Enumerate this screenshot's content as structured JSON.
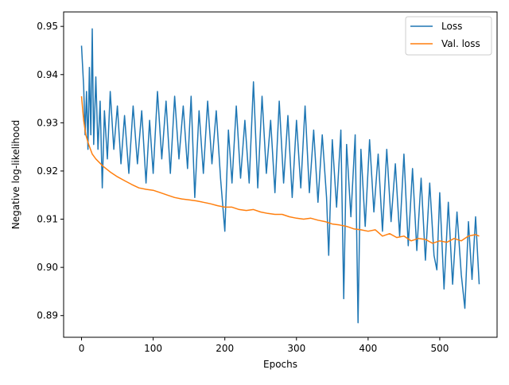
{
  "chart_data": {
    "type": "line",
    "title": "",
    "xlabel": "Epochs",
    "ylabel": "Negative log-likelihood",
    "xlim": [
      -25,
      580
    ],
    "ylim": [
      0.8855,
      0.953
    ],
    "xticks": [
      0,
      100,
      200,
      300,
      400,
      500
    ],
    "yticks": [
      0.89,
      0.9,
      0.91,
      0.92,
      0.93,
      0.94,
      0.95
    ],
    "ytick_labels": [
      "0.89",
      "0.90",
      "0.91",
      "0.92",
      "0.93",
      "0.94",
      "0.95"
    ],
    "grid": false,
    "legend": "top-right",
    "series": [
      {
        "name": "Loss",
        "color": "#1f77b4",
        "x": [
          0,
          3,
          5,
          7,
          9,
          11,
          13,
          15,
          17,
          20,
          23,
          26,
          29,
          32,
          36,
          40,
          45,
          50,
          55,
          60,
          66,
          72,
          78,
          84,
          90,
          95,
          100,
          106,
          112,
          118,
          124,
          130,
          136,
          142,
          148,
          153,
          158,
          164,
          170,
          176,
          182,
          188,
          194,
          200,
          205,
          210,
          216,
          222,
          228,
          234,
          240,
          246,
          252,
          258,
          264,
          270,
          276,
          282,
          288,
          294,
          300,
          306,
          312,
          318,
          324,
          330,
          336,
          342,
          345,
          350,
          356,
          362,
          366,
          370,
          376,
          382,
          386,
          390,
          396,
          402,
          408,
          414,
          420,
          426,
          432,
          438,
          444,
          450,
          456,
          462,
          468,
          474,
          480,
          486,
          492,
          496,
          500,
          506,
          512,
          518,
          524,
          530,
          535,
          540,
          545,
          550,
          555
        ],
        "y": [
          0.946,
          0.9375,
          0.9275,
          0.9365,
          0.9245,
          0.9415,
          0.9275,
          0.9495,
          0.9255,
          0.9395,
          0.9245,
          0.9345,
          0.9165,
          0.9325,
          0.9225,
          0.9365,
          0.9245,
          0.9335,
          0.9215,
          0.9315,
          0.9195,
          0.9335,
          0.9215,
          0.9325,
          0.9175,
          0.9305,
          0.9195,
          0.9365,
          0.9225,
          0.9345,
          0.9195,
          0.9355,
          0.9225,
          0.9335,
          0.9205,
          0.9355,
          0.9145,
          0.9325,
          0.9195,
          0.9345,
          0.9215,
          0.9325,
          0.9185,
          0.9075,
          0.9285,
          0.9175,
          0.9335,
          0.9185,
          0.9305,
          0.9175,
          0.9385,
          0.9165,
          0.9355,
          0.9195,
          0.9305,
          0.9155,
          0.9345,
          0.9175,
          0.9315,
          0.9145,
          0.9305,
          0.9165,
          0.9335,
          0.9155,
          0.9285,
          0.9135,
          0.9275,
          0.9145,
          0.9025,
          0.9265,
          0.9125,
          0.9285,
          0.8935,
          0.9255,
          0.9105,
          0.9275,
          0.8885,
          0.9245,
          0.9085,
          0.9265,
          0.9115,
          0.9235,
          0.9075,
          0.9245,
          0.9095,
          0.9215,
          0.9065,
          0.9235,
          0.9045,
          0.9205,
          0.9035,
          0.9185,
          0.9015,
          0.9175,
          0.9025,
          0.8995,
          0.9155,
          0.8955,
          0.9135,
          0.8965,
          0.9115,
          0.8985,
          0.8915,
          0.9095,
          0.8975,
          0.9105,
          0.8965
        ]
      },
      {
        "name": "Val. loss",
        "color": "#ff7f0e",
        "x": [
          0,
          3,
          6,
          10,
          15,
          20,
          30,
          40,
          50,
          60,
          70,
          80,
          90,
          100,
          110,
          120,
          130,
          140,
          150,
          160,
          170,
          180,
          190,
          200,
          210,
          220,
          230,
          240,
          250,
          260,
          270,
          280,
          290,
          300,
          310,
          320,
          330,
          340,
          350,
          360,
          370,
          380,
          390,
          400,
          410,
          420,
          430,
          440,
          450,
          460,
          470,
          480,
          490,
          500,
          510,
          520,
          530,
          540,
          550,
          555
        ],
        "y": [
          0.9355,
          0.9305,
          0.9275,
          0.9255,
          0.9235,
          0.9225,
          0.921,
          0.9198,
          0.9188,
          0.918,
          0.9172,
          0.9165,
          0.9162,
          0.916,
          0.9155,
          0.915,
          0.9145,
          0.9142,
          0.914,
          0.9138,
          0.9135,
          0.9132,
          0.9128,
          0.9125,
          0.9125,
          0.912,
          0.9118,
          0.912,
          0.9115,
          0.9112,
          0.911,
          0.911,
          0.9105,
          0.9102,
          0.91,
          0.9102,
          0.9098,
          0.9095,
          0.909,
          0.9088,
          0.9085,
          0.908,
          0.9078,
          0.9075,
          0.9078,
          0.9065,
          0.907,
          0.9062,
          0.9065,
          0.9055,
          0.906,
          0.9058,
          0.905,
          0.9055,
          0.9052,
          0.906,
          0.9055,
          0.9065,
          0.9068,
          0.9065
        ]
      }
    ]
  }
}
